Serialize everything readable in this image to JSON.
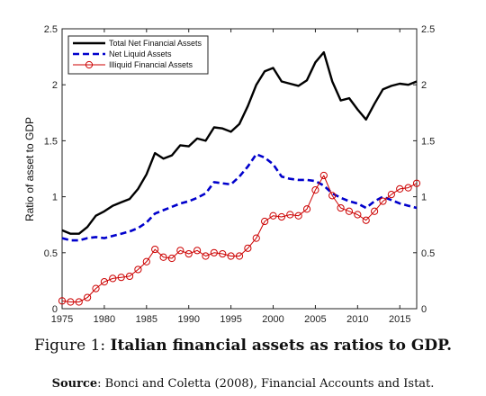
{
  "caption": {
    "figure_label": "Figure 1:",
    "figure_title": "Italian financial assets as ratios to GDP.",
    "source_label": "Source",
    "source_text": ": Bonci and Coletta (2008), Financial Accounts and Istat."
  },
  "chart_data": {
    "type": "line",
    "title": "",
    "xlabel": "",
    "ylabel": "Ratio of asset to GDP",
    "xlim": [
      1975,
      2017
    ],
    "ylim": [
      0,
      2.5
    ],
    "x_ticks": [
      1975,
      1980,
      1985,
      1990,
      1995,
      2000,
      2005,
      2010,
      2015
    ],
    "y_ticks": [
      0,
      0.5,
      1,
      1.5,
      2,
      2.5
    ],
    "y_tick_labels": [
      "0",
      "0.5",
      "1",
      "1.5",
      "2",
      "2.5"
    ],
    "legend_position": "top-left",
    "grid": false,
    "x": [
      1975,
      1976,
      1977,
      1978,
      1979,
      1980,
      1981,
      1982,
      1983,
      1984,
      1985,
      1986,
      1987,
      1988,
      1989,
      1990,
      1991,
      1992,
      1993,
      1994,
      1995,
      1996,
      1997,
      1998,
      1999,
      2000,
      2001,
      2002,
      2003,
      2004,
      2005,
      2006,
      2007,
      2008,
      2009,
      2010,
      2011,
      2012,
      2013,
      2014,
      2015,
      2016,
      2017
    ],
    "series": [
      {
        "name": "Total Net Financial Assets",
        "color": "#000000",
        "style": "solid",
        "values": [
          0.7,
          0.67,
          0.67,
          0.73,
          0.83,
          0.87,
          0.92,
          0.95,
          0.98,
          1.07,
          1.2,
          1.39,
          1.34,
          1.37,
          1.46,
          1.45,
          1.52,
          1.5,
          1.62,
          1.61,
          1.58,
          1.65,
          1.81,
          2.0,
          2.12,
          2.15,
          2.03,
          2.01,
          1.99,
          2.04,
          2.2,
          2.29,
          2.03,
          1.86,
          1.88,
          1.78,
          1.69,
          1.83,
          1.96,
          1.99,
          2.01,
          2.0,
          2.03
        ]
      },
      {
        "name": "Net Liquid Assets",
        "color": "#0000cc",
        "style": "dashed",
        "values": [
          0.63,
          0.61,
          0.61,
          0.63,
          0.64,
          0.63,
          0.65,
          0.67,
          0.69,
          0.72,
          0.77,
          0.85,
          0.88,
          0.91,
          0.94,
          0.96,
          0.99,
          1.03,
          1.13,
          1.12,
          1.11,
          1.18,
          1.27,
          1.38,
          1.35,
          1.29,
          1.18,
          1.16,
          1.15,
          1.15,
          1.14,
          1.1,
          1.03,
          0.99,
          0.96,
          0.94,
          0.9,
          0.96,
          1.0,
          0.97,
          0.94,
          0.92,
          0.9
        ]
      },
      {
        "name": "Illiquid Financial Assets",
        "color": "#cc0000",
        "style": "solid-circle-markers",
        "values": [
          0.07,
          0.06,
          0.06,
          0.1,
          0.18,
          0.24,
          0.27,
          0.28,
          0.29,
          0.35,
          0.42,
          0.53,
          0.46,
          0.45,
          0.52,
          0.49,
          0.52,
          0.47,
          0.5,
          0.49,
          0.47,
          0.47,
          0.54,
          0.63,
          0.78,
          0.83,
          0.82,
          0.84,
          0.83,
          0.89,
          1.06,
          1.19,
          1.01,
          0.9,
          0.87,
          0.84,
          0.79,
          0.87,
          0.96,
          1.02,
          1.07,
          1.08,
          1.12
        ]
      }
    ]
  }
}
